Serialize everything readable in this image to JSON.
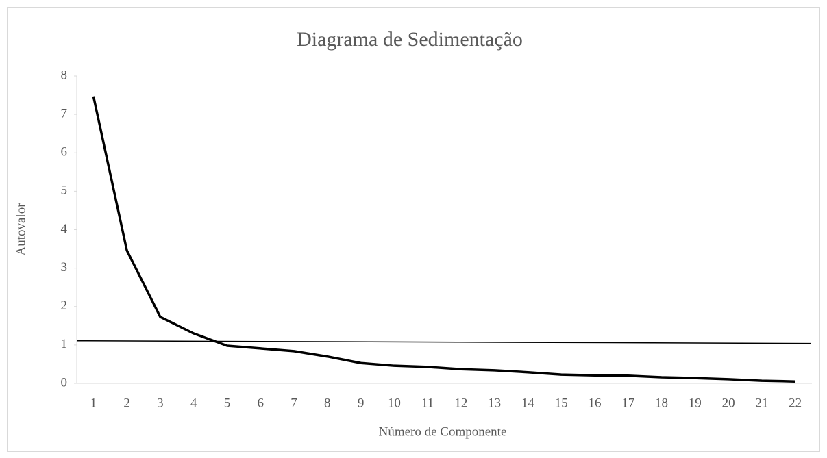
{
  "chart_data": {
    "type": "line",
    "title": "Diagrama de Sedimentação",
    "x_label": "Número de Componente",
    "y_label": "Autovalor",
    "categories": [
      "1",
      "2",
      "3",
      "4",
      "5",
      "6",
      "7",
      "8",
      "9",
      "10",
      "11",
      "12",
      "13",
      "14",
      "15",
      "16",
      "17",
      "18",
      "19",
      "20",
      "21",
      "22"
    ],
    "values": [
      7.47,
      3.46,
      1.73,
      1.3,
      0.98,
      0.91,
      0.84,
      0.7,
      0.53,
      0.46,
      0.43,
      0.37,
      0.34,
      0.29,
      0.23,
      0.21,
      0.2,
      0.16,
      0.14,
      0.11,
      0.07,
      0.05
    ],
    "color": "#000000",
    "reference_line": {
      "values": [
        1.11,
        1.04
      ],
      "color": "#000000"
    },
    "ylim": [
      0,
      8
    ],
    "yticks": [
      0,
      1,
      2,
      3,
      4,
      5,
      6,
      7,
      8
    ]
  }
}
